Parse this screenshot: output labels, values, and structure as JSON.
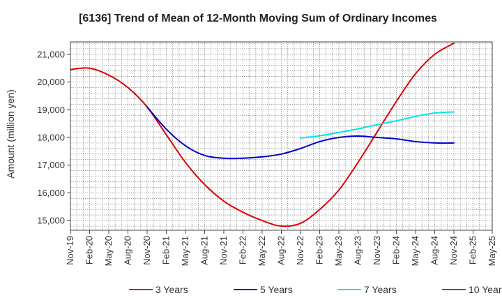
{
  "chart_data": {
    "type": "line",
    "title": "[6136]  Trend of Mean of 12-Month Moving Sum of Ordinary Incomes",
    "ylabel": "Amount (million yen)",
    "xlabel": "",
    "ylim": [
      14650,
      21450
    ],
    "yticks": [
      15000,
      16000,
      17000,
      18000,
      19000,
      20000,
      21000
    ],
    "ytick_labels": [
      "15,000",
      "16,000",
      "17,000",
      "18,000",
      "19,000",
      "20,000",
      "21,000"
    ],
    "x_tick_labels": [
      "Nov-19",
      "Feb-20",
      "May-20",
      "Aug-20",
      "Nov-20",
      "Feb-21",
      "May-21",
      "Aug-21",
      "Nov-21",
      "Feb-22",
      "May-22",
      "Aug-22",
      "Nov-22",
      "Feb-23",
      "May-23",
      "Aug-23",
      "Nov-23",
      "Feb-24",
      "May-24",
      "Aug-24",
      "Nov-24",
      "Feb-25",
      "May-25"
    ],
    "x_range_months": [
      0,
      66
    ],
    "grid": true,
    "legend_position": "bottom",
    "series": [
      {
        "name": "3 Years",
        "color": "#dd0000",
        "x": [
          0,
          3,
          6,
          9,
          12,
          15,
          18,
          21,
          24,
          27,
          30,
          33,
          36,
          39,
          42,
          45,
          48,
          51,
          54,
          57,
          60
        ],
        "values": [
          20450,
          20500,
          20250,
          19800,
          19100,
          18100,
          17100,
          16300,
          15700,
          15300,
          15000,
          14800,
          14900,
          15400,
          16100,
          17100,
          18200,
          19300,
          20300,
          21000,
          21400
        ]
      },
      {
        "name": "5 Years",
        "color": "#0000cc",
        "x": [
          12,
          15,
          18,
          21,
          24,
          27,
          30,
          33,
          36,
          39,
          42,
          45,
          48,
          51,
          54,
          57,
          60
        ],
        "values": [
          19100,
          18300,
          17700,
          17350,
          17250,
          17250,
          17300,
          17400,
          17600,
          17850,
          18000,
          18050,
          18000,
          17950,
          17850,
          17800,
          17800
        ]
      },
      {
        "name": "7 Years",
        "color": "#00e5e5",
        "x": [
          36,
          39,
          42,
          45,
          48,
          51,
          54,
          57,
          60
        ],
        "values": [
          17980,
          18060,
          18180,
          18310,
          18460,
          18600,
          18760,
          18880,
          18920
        ]
      },
      {
        "name": "10 Years",
        "color": "#008000",
        "x": [],
        "values": []
      }
    ]
  }
}
